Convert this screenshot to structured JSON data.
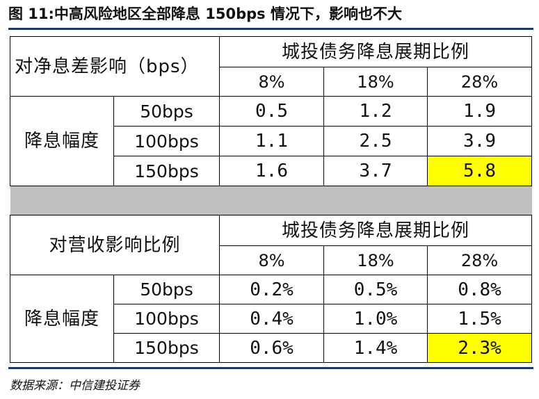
{
  "title": "图 11:中高风险地区全部降息 150bps 情况下，影响也不大",
  "source": "数据来源：中信建投证券",
  "highlight_color": "#FFFF00",
  "separator_color": "#BFBFBF",
  "rule_color": "#1F3864",
  "section1": {
    "label": "对净息差影响（bps）",
    "group_header": "城投债务降息展期比例",
    "columns": [
      "8%",
      "18%",
      "28%"
    ],
    "row_group_label": "降息幅度",
    "rows": [
      {
        "label": "50bps",
        "values": [
          "0.5",
          "1.2",
          "1.9"
        ]
      },
      {
        "label": "100bps",
        "values": [
          "1.1",
          "2.5",
          "3.9"
        ]
      },
      {
        "label": "150bps",
        "values": [
          "1.6",
          "3.7",
          "5.8"
        ]
      }
    ]
  },
  "section2": {
    "label": "对营收影响比例",
    "group_header": "城投债务降息展期比例",
    "columns": [
      "8%",
      "18%",
      "28%"
    ],
    "row_group_label": "降息幅度",
    "rows": [
      {
        "label": "50bps",
        "values": [
          "0.2%",
          "0.5%",
          "0.8%"
        ]
      },
      {
        "label": "100bps",
        "values": [
          "0.4%",
          "1.0%",
          "1.5%"
        ]
      },
      {
        "label": "150bps",
        "values": [
          "0.6%",
          "1.4%",
          "2.3%"
        ]
      }
    ]
  }
}
